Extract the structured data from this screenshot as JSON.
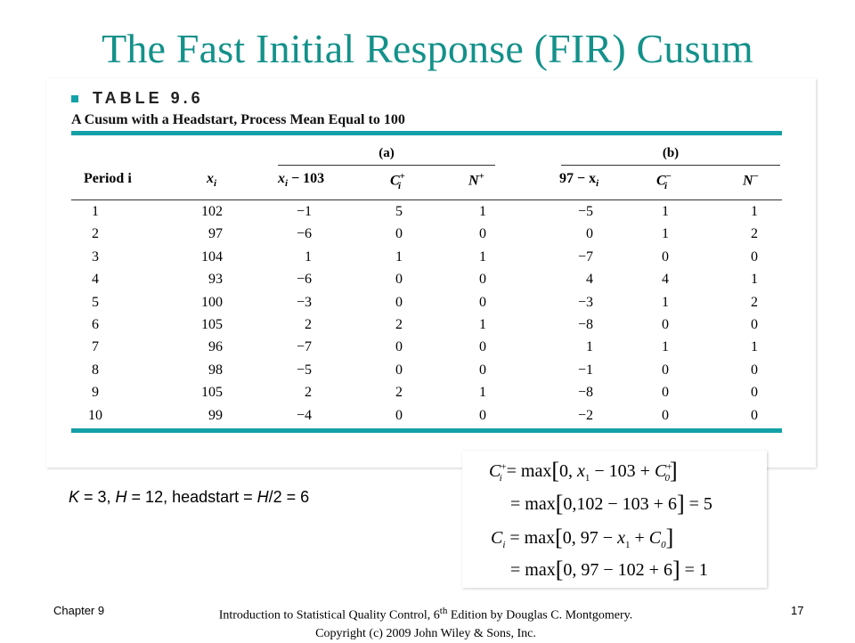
{
  "slide": {
    "title": "The Fast Initial Response (FIR) Cusum"
  },
  "table": {
    "label": "TABLE 9.6",
    "caption": "A Cusum with a Headstart, Process Mean Equal to 100",
    "group_a": "(a)",
    "group_b": "(b)",
    "headers": {
      "period": "Period i",
      "x": "x",
      "x_sub": "i",
      "a1_main": "x",
      "a1_sub": "i",
      "a1_tail": " − 103",
      "a2_main": "C",
      "a2_sub": "i",
      "a2_sup": "+",
      "a3_main": "N",
      "a3_sup": "+",
      "b1_head": "97 − x",
      "b1_sub": "i",
      "b2_main": "C",
      "b2_sub": "i",
      "b2_sup": "−",
      "b3_main": "N",
      "b3_sup": "−"
    },
    "rows": [
      {
        "period": "1",
        "x": "102",
        "a1": "−1",
        "a2": "5",
        "a3": "1",
        "b1": "−5",
        "b2": "1",
        "b3": "1"
      },
      {
        "period": "2",
        "x": "97",
        "a1": "−6",
        "a2": "0",
        "a3": "0",
        "b1": "0",
        "b2": "1",
        "b3": "2"
      },
      {
        "period": "3",
        "x": "104",
        "a1": "1",
        "a2": "1",
        "a3": "1",
        "b1": "−7",
        "b2": "0",
        "b3": "0"
      },
      {
        "period": "4",
        "x": "93",
        "a1": "−6",
        "a2": "0",
        "a3": "0",
        "b1": "4",
        "b2": "4",
        "b3": "1"
      },
      {
        "period": "5",
        "x": "100",
        "a1": "−3",
        "a2": "0",
        "a3": "0",
        "b1": "−3",
        "b2": "1",
        "b3": "2"
      },
      {
        "period": "6",
        "x": "105",
        "a1": "2",
        "a2": "2",
        "a3": "1",
        "b1": "−8",
        "b2": "0",
        "b3": "0"
      },
      {
        "period": "7",
        "x": "96",
        "a1": "−7",
        "a2": "0",
        "a3": "0",
        "b1": "1",
        "b2": "1",
        "b3": "1"
      },
      {
        "period": "8",
        "x": "98",
        "a1": "−5",
        "a2": "0",
        "a3": "0",
        "b1": "−1",
        "b2": "0",
        "b3": "0"
      },
      {
        "period": "9",
        "x": "105",
        "a1": "2",
        "a2": "2",
        "a3": "1",
        "b1": "−8",
        "b2": "0",
        "b3": "0"
      },
      {
        "period": "10",
        "x": "99",
        "a1": "−4",
        "a2": "0",
        "a3": "0",
        "b1": "−2",
        "b2": "0",
        "b3": "0"
      }
    ]
  },
  "params": {
    "k_sym": "K",
    "k_rest": " = 3, ",
    "h_sym": "H",
    "h_rest": " = 12, headstart = ",
    "h2_sym": "H",
    "h2_rest": "/2 = 6"
  },
  "formulas": {
    "line1": "C_i^+ = max[0, x_1 − 103 + C_0^+]",
    "line2": "= max[0,102 − 103 + 6] = 5",
    "line3": "C_i = max[0, 97 − x_1 + C_0]",
    "line4": "= max[0, 97 − 102 + 6] = 1"
  },
  "footer": {
    "chapter": "Chapter 9",
    "book_pre": "Introduction to Statistical Quality Control, 6",
    "book_sup": "th",
    "book_post": " Edition by Douglas C. Montgomery.",
    "copyright": "Copyright (c) 2009  John Wiley & Sons, Inc.",
    "page": "17"
  }
}
